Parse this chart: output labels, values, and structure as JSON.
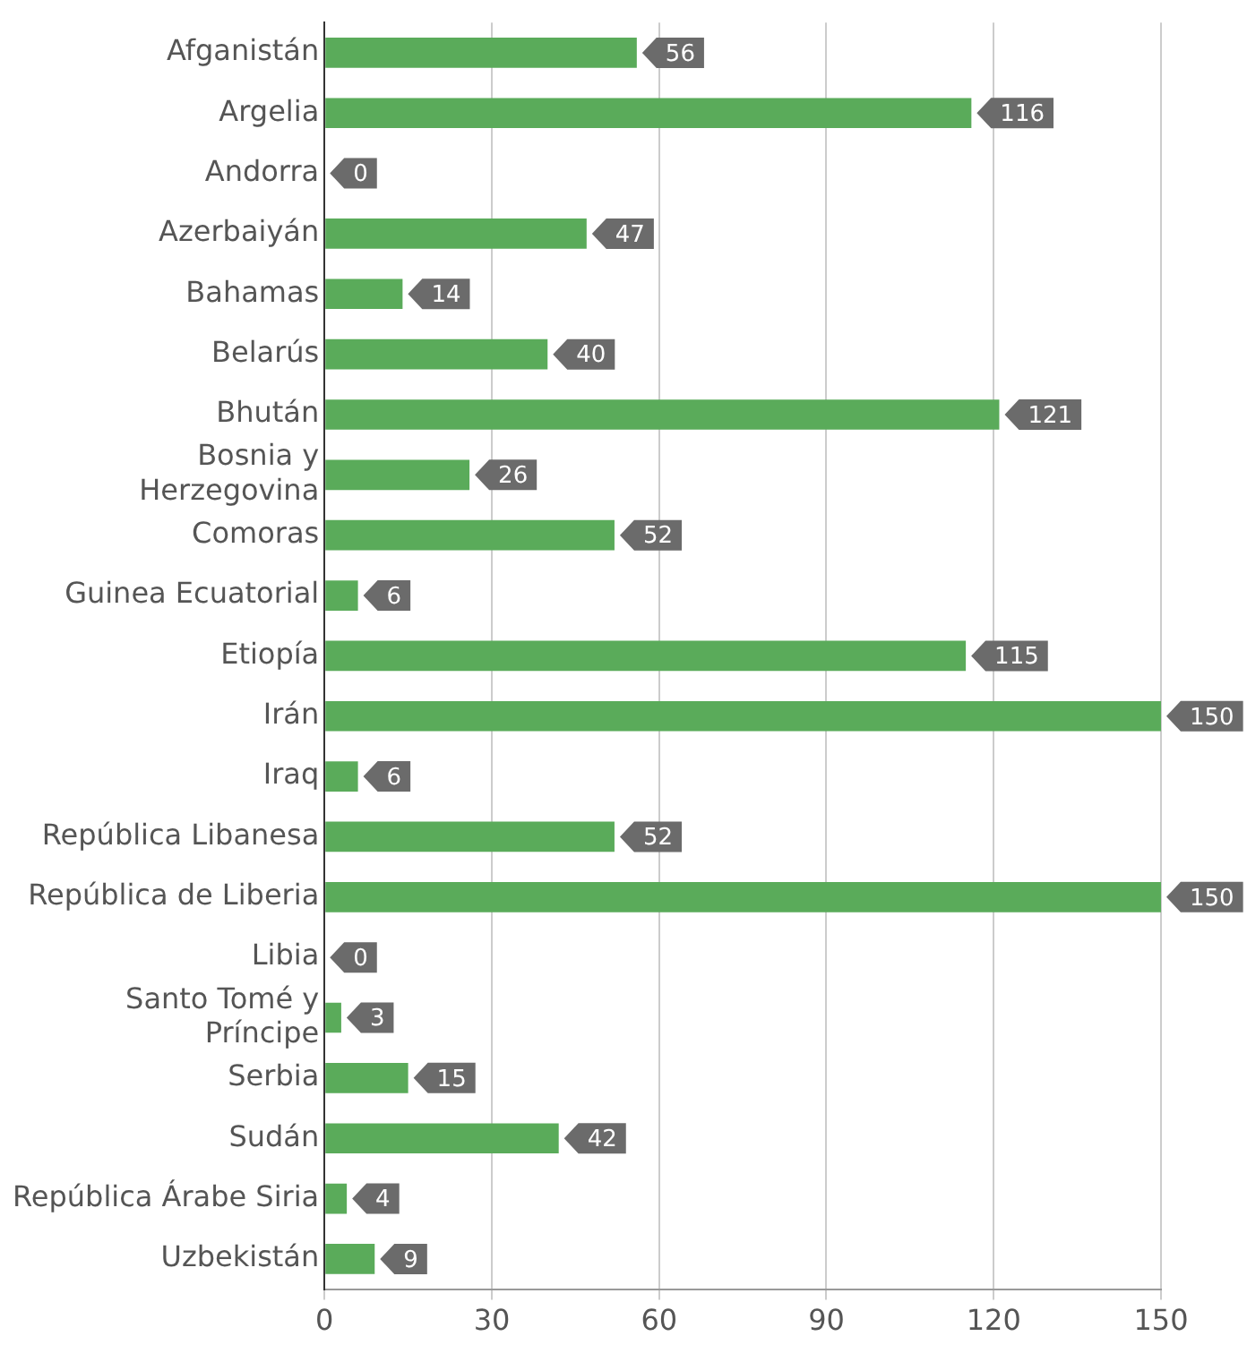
{
  "chart_data": {
    "type": "bar",
    "orientation": "horizontal",
    "categories": [
      "Afganistán",
      "Argelia",
      "Andorra",
      "Azerbaiyán",
      "Bahamas",
      "Belarús",
      "Bhután",
      "Bosnia y\nHerzegovina",
      "Comoras",
      "Guinea Ecuatorial",
      "Etiopía",
      "Irán",
      "Iraq",
      "República Libanesa",
      "República de Liberia",
      "Libia",
      "Santo Tomé y\nPríncipe",
      "Serbia",
      "Sudán",
      "República Árabe Siria",
      "Uzbekistán"
    ],
    "values": [
      56,
      116,
      0,
      47,
      14,
      40,
      121,
      26,
      52,
      6,
      115,
      150,
      6,
      52,
      150,
      0,
      3,
      15,
      42,
      4,
      9
    ],
    "color": "#5aab5a",
    "data_labels": true,
    "xlim": [
      0,
      150
    ],
    "xticks": [
      0,
      30,
      60,
      90,
      120,
      150
    ],
    "grid": "x"
  }
}
